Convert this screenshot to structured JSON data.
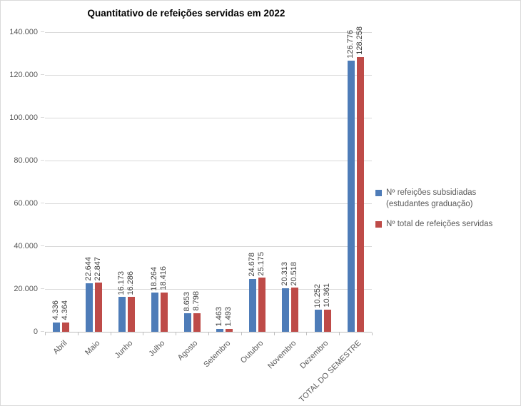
{
  "chart_data": {
    "type": "bar",
    "title": "Quantitativo de refeições servidas em 2022",
    "categories": [
      "Abril",
      "Maio",
      "Junho",
      "Julho",
      "Agosto",
      "Setembro",
      "Outubro",
      "Novembro",
      "Dezembro",
      "TOTAL DO SEMESTRE"
    ],
    "series": [
      {
        "name": "Nº refeições subsidiadas (estudantes graduação)",
        "color": "#4E7CB8",
        "values": [
          4336,
          22644,
          16173,
          18264,
          8653,
          1463,
          24678,
          20313,
          10252,
          126776
        ],
        "labels": [
          "4.336",
          "22.644",
          "16.173",
          "18.264",
          "8.653",
          "1.463",
          "24.678",
          "20.313",
          "10.252",
          "126.776"
        ]
      },
      {
        "name": "Nº total de refeições servidas",
        "color": "#BE4B48",
        "values": [
          4364,
          22847,
          16286,
          18416,
          8798,
          1493,
          25175,
          20518,
          10361,
          128258
        ],
        "labels": [
          "4.364",
          "22.847",
          "16.286",
          "18.416",
          "8.798",
          "1.493",
          "25.175",
          "20.518",
          "10.361",
          "128.258"
        ]
      }
    ],
    "ylim": [
      0,
      140000
    ],
    "ytick_interval": 20000,
    "ytick_labels": [
      "0",
      "20.000",
      "40.000",
      "60.000",
      "80.000",
      "100.000",
      "120.000",
      "140.000"
    ],
    "grid": true,
    "legend_position": "right",
    "x_label_rotation": -45,
    "data_label_rotation": 90,
    "colors": {
      "gridline": "#D9D9D9",
      "axis_line": "#BFBFBF",
      "axis_text": "#595959",
      "data_label_text": "#404040",
      "title_text": "#000000"
    }
  }
}
